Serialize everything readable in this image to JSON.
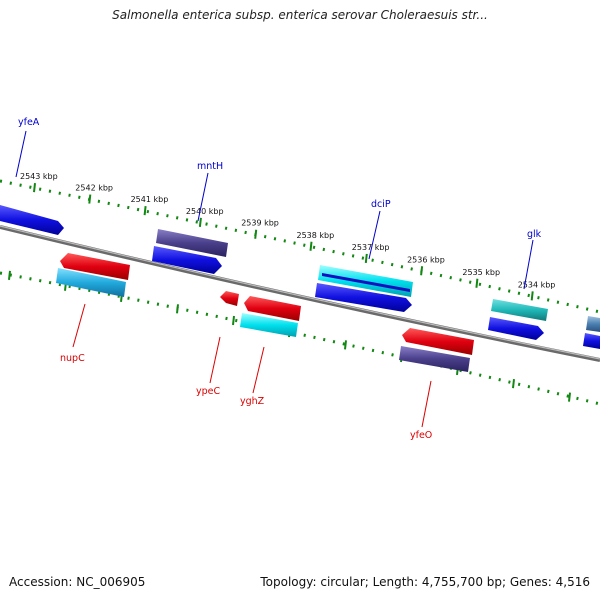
{
  "header": {
    "title": "Salmonella enterica subsp. enterica serovar Choleraesuis str..."
  },
  "footer": {
    "accession": "Accession: NC_006905",
    "summary": "Topology: circular; Length: 4,755,700 bp; Genes: 4,516"
  },
  "ruler": {
    "labels": [
      "2543 kbp",
      "2542 kbp",
      "2541 kbp",
      "2540 kbp",
      "2539 kbp",
      "2538 kbp",
      "2537 kbp",
      "2536 kbp",
      "2535 kbp",
      "2534 kbp"
    ]
  },
  "gene_labels": [
    {
      "name": "yfeA",
      "strand": "forward",
      "color": "#0000cc"
    },
    {
      "name": "mntH",
      "strand": "forward",
      "color": "#0000cc"
    },
    {
      "name": "dciP",
      "strand": "forward",
      "color": "#0000cc"
    },
    {
      "name": "glk",
      "strand": "forward",
      "color": "#0000cc"
    },
    {
      "name": "nupC",
      "strand": "reverse",
      "color": "#dd0000"
    },
    {
      "name": "ypeC",
      "strand": "reverse",
      "color": "#dd0000"
    },
    {
      "name": "yghZ",
      "strand": "reverse",
      "color": "#dd0000"
    },
    {
      "name": "yfeO",
      "strand": "reverse",
      "color": "#dd0000"
    }
  ],
  "colors": {
    "forward_gene": "#1010e0",
    "reverse_gene": "#e00010",
    "forward_gene_alt": "#4a3f8a",
    "reverse_gene_alt": "#22aadd",
    "cyan_gene": "#00d0e0",
    "teal_gene": "#20b8b8",
    "backbone": "#8a8a8a",
    "ruler_dots": "#118811"
  }
}
